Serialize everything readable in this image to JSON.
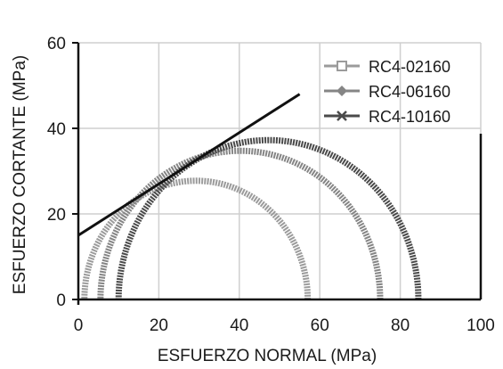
{
  "chart_data": {
    "type": "line",
    "xlabel": "ESFUERZO NORMAL (MPa)",
    "ylabel": "ESFUERZO CORTANTE (MPa)",
    "xlim": [
      0,
      100
    ],
    "ylim": [
      0,
      60
    ],
    "xticks": [
      0,
      20,
      40,
      60,
      80,
      100
    ],
    "yticks": [
      0,
      20,
      40,
      60
    ],
    "grid": true,
    "legend_position": "top-right",
    "series": [
      {
        "name": "RC4-02160",
        "type": "mohr-circle",
        "sigma3": 1.5,
        "sigma1": 57,
        "color": "#9b9b9b",
        "marker": "square"
      },
      {
        "name": "RC4-06160",
        "type": "mohr-circle",
        "sigma3": 5.5,
        "sigma1": 75,
        "color": "#858585",
        "marker": "diamond"
      },
      {
        "name": "RC4-10160",
        "type": "mohr-circle",
        "sigma3": 10,
        "sigma1": 84.5,
        "color": "#4a4a4a",
        "marker": "x"
      }
    ],
    "envelope": {
      "x": [
        0,
        55
      ],
      "y": [
        15,
        48
      ],
      "color": "#111111"
    }
  }
}
